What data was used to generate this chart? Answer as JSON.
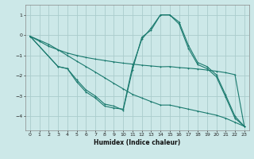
{
  "xlabel": "Humidex (Indice chaleur)",
  "bg_color": "#cce8e8",
  "grid_color": "#aacccc",
  "line_color": "#1a7a6e",
  "xlim": [
    -0.5,
    23.5
  ],
  "ylim": [
    -4.7,
    1.5
  ],
  "xticks": [
    0,
    1,
    2,
    3,
    4,
    5,
    6,
    7,
    8,
    9,
    10,
    11,
    12,
    13,
    14,
    15,
    16,
    17,
    18,
    19,
    20,
    21,
    22,
    23
  ],
  "yticks": [
    -4,
    -3,
    -2,
    -1,
    0,
    1
  ],
  "line1_x": [
    0,
    1,
    2,
    3,
    4,
    5,
    6,
    7,
    8,
    9,
    10,
    11,
    12,
    13,
    14,
    15,
    16,
    17,
    18,
    19,
    20,
    21,
    22,
    23
  ],
  "line1_y": [
    -0.05,
    -0.3,
    -0.55,
    -0.72,
    -0.88,
    -1.0,
    -1.1,
    -1.18,
    -1.25,
    -1.32,
    -1.38,
    -1.43,
    -1.48,
    -1.52,
    -1.56,
    -1.55,
    -1.6,
    -1.63,
    -1.67,
    -1.72,
    -1.78,
    -1.85,
    -1.95,
    -4.5
  ],
  "line2_x": [
    0,
    1,
    2,
    3,
    4,
    5,
    6,
    7,
    8,
    9,
    10,
    11,
    12,
    13,
    14,
    15,
    16,
    17,
    18,
    19,
    20,
    21,
    22,
    23
  ],
  "line2_y": [
    -0.05,
    -0.25,
    -0.45,
    -0.72,
    -1.0,
    -1.28,
    -1.55,
    -1.82,
    -2.1,
    -2.38,
    -2.65,
    -2.92,
    -3.1,
    -3.28,
    -3.45,
    -3.45,
    -3.55,
    -3.65,
    -3.75,
    -3.85,
    -3.95,
    -4.1,
    -4.3,
    -4.5
  ],
  "line3_x": [
    0,
    3,
    4,
    5,
    6,
    7,
    8,
    9,
    10,
    11,
    12,
    13,
    14,
    15,
    16,
    17,
    18,
    19,
    20,
    21,
    22,
    23
  ],
  "line3_y": [
    -0.05,
    -1.55,
    -1.65,
    -2.3,
    -2.8,
    -3.1,
    -3.5,
    -3.6,
    -3.65,
    -1.55,
    -0.2,
    0.35,
    1.0,
    1.0,
    0.55,
    -0.65,
    -1.45,
    -1.65,
    -2.05,
    -3.05,
    -4.1,
    -4.5
  ],
  "line4_x": [
    0,
    3,
    4,
    5,
    6,
    7,
    8,
    9,
    10,
    11,
    12,
    13,
    14,
    15,
    16,
    17,
    18,
    19,
    20,
    21,
    22,
    23
  ],
  "line4_y": [
    -0.05,
    -1.55,
    -1.65,
    -2.2,
    -2.7,
    -3.0,
    -3.4,
    -3.5,
    -3.7,
    -1.7,
    -0.1,
    0.25,
    1.0,
    1.0,
    0.65,
    -0.5,
    -1.35,
    -1.55,
    -1.95,
    -2.95,
    -4.0,
    -4.5
  ]
}
